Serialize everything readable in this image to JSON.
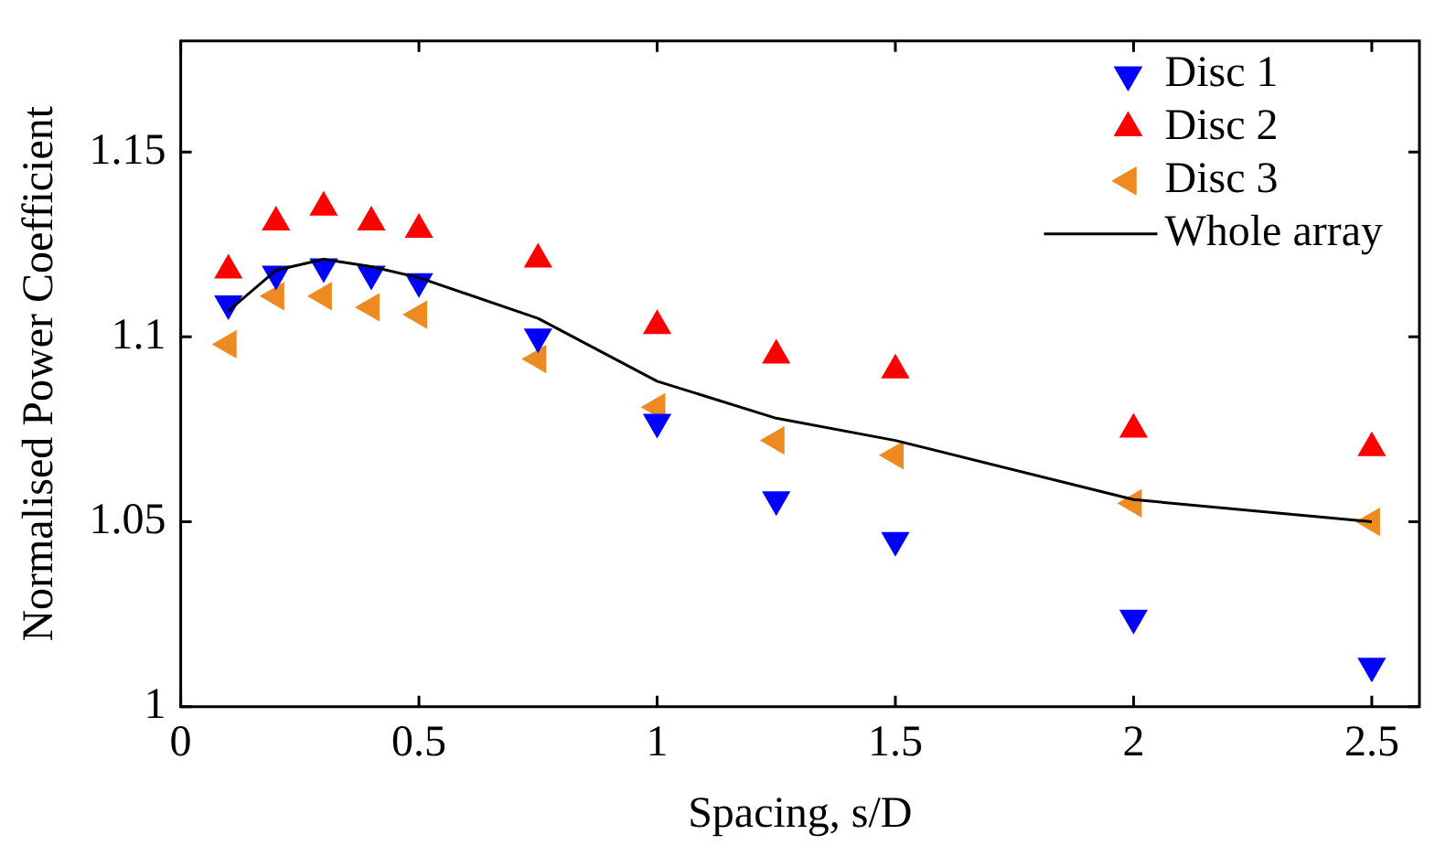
{
  "chart_data": {
    "type": "scatter",
    "xlabel": "Spacing, s/D",
    "ylabel": "Normalised Power Coefficient",
    "x": [
      0.1,
      0.2,
      0.3,
      0.4,
      0.5,
      0.75,
      1,
      1.25,
      1.5,
      2,
      2.5
    ],
    "series": [
      {
        "name": "Disc 1",
        "color": "#0000ff",
        "marker": "triangle-down",
        "values": [
          1.109,
          1.117,
          1.119,
          1.117,
          1.115,
          1.1,
          1.077,
          1.056,
          1.045,
          1.024,
          1.011
        ]
      },
      {
        "name": "Disc 2",
        "color": "#ff0000",
        "marker": "triangle",
        "values": [
          1.118,
          1.131,
          1.135,
          1.131,
          1.129,
          1.121,
          1.103,
          1.095,
          1.091,
          1.075,
          1.07
        ]
      },
      {
        "name": "Disc 3",
        "color": "#ee8a22",
        "marker": "triangle-left",
        "values": [
          1.098,
          1.111,
          1.111,
          1.108,
          1.106,
          1.094,
          1.081,
          1.072,
          1.068,
          1.055,
          1.05
        ]
      },
      {
        "name": "Whole array",
        "type": "line",
        "color": "#000000",
        "marker": "none",
        "line_style": "solid",
        "values": [
          1.107,
          1.118,
          1.121,
          1.119,
          1.116,
          1.105,
          1.088,
          1.078,
          1.072,
          1.056,
          1.05
        ]
      }
    ],
    "xlim": [
      0,
      2.6
    ],
    "xticks": [
      0,
      0.5,
      1,
      1.5,
      2,
      2.5
    ],
    "ylim": [
      1,
      1.18
    ],
    "yticks": [
      1,
      1.05,
      1.1,
      1.15
    ],
    "grid": false,
    "legend": "top right"
  }
}
